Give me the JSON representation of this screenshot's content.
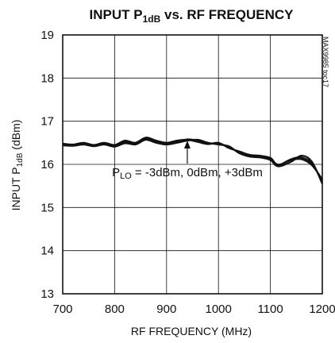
{
  "chart_data": {
    "type": "line",
    "title": {
      "pre": "INPUT P",
      "sub": "1dB",
      "post": " vs. RF FREQUENCY"
    },
    "xlabel": "RF FREQUENCY (MHz)",
    "ylabel": {
      "pre": "INPUT P",
      "sub": "1dB",
      "post": " (dBm)"
    },
    "xlim": [
      700,
      1200
    ],
    "ylim": [
      13,
      19
    ],
    "xticks": [
      700,
      800,
      900,
      1000,
      1100,
      1200
    ],
    "yticks": [
      13,
      14,
      15,
      16,
      17,
      18,
      19
    ],
    "grid": true,
    "series_color": "#111111",
    "series": [
      {
        "x": [
          700,
          720,
          740,
          760,
          780,
          800,
          820,
          840,
          860,
          880,
          900,
          920,
          940,
          960,
          980,
          1000,
          1020,
          1040,
          1060,
          1080,
          1100,
          1110,
          1120,
          1140,
          1160,
          1180,
          1200
        ],
        "y": [
          16.48,
          16.46,
          16.5,
          16.45,
          16.5,
          16.45,
          16.55,
          16.5,
          16.62,
          16.55,
          16.5,
          16.55,
          16.57,
          16.52,
          16.47,
          16.5,
          16.38,
          16.3,
          16.22,
          16.2,
          16.15,
          16.02,
          16.0,
          16.1,
          16.12,
          15.98,
          15.65
        ]
      },
      {
        "x": [
          700,
          720,
          740,
          760,
          780,
          800,
          820,
          840,
          860,
          880,
          900,
          920,
          940,
          960,
          980,
          1000,
          1020,
          1040,
          1060,
          1080,
          1100,
          1110,
          1120,
          1140,
          1160,
          1180,
          1200
        ],
        "y": [
          16.46,
          16.45,
          16.48,
          16.44,
          16.48,
          16.43,
          16.52,
          16.48,
          16.6,
          16.52,
          16.48,
          16.52,
          16.58,
          16.55,
          16.48,
          16.48,
          16.4,
          16.28,
          16.2,
          16.18,
          16.12,
          16.0,
          16.0,
          16.12,
          16.16,
          16.02,
          15.6
        ]
      },
      {
        "x": [
          700,
          720,
          740,
          760,
          780,
          800,
          820,
          840,
          860,
          880,
          900,
          920,
          940,
          960,
          980,
          1000,
          1020,
          1040,
          1060,
          1080,
          1100,
          1110,
          1120,
          1140,
          1160,
          1180,
          1200
        ],
        "y": [
          16.44,
          16.43,
          16.46,
          16.42,
          16.46,
          16.41,
          16.49,
          16.46,
          16.57,
          16.5,
          16.46,
          16.5,
          16.55,
          16.57,
          16.5,
          16.46,
          16.42,
          16.26,
          16.18,
          16.16,
          16.1,
          15.98,
          15.96,
          16.06,
          16.2,
          16.06,
          15.55
        ]
      }
    ],
    "annotation": {
      "pre": "P",
      "sub": "LO",
      "post": " = -3dBm, 0dBm, +3dBm",
      "target": [
        940,
        16.57
      ]
    },
    "side_note": "MAX9985 toc17"
  }
}
